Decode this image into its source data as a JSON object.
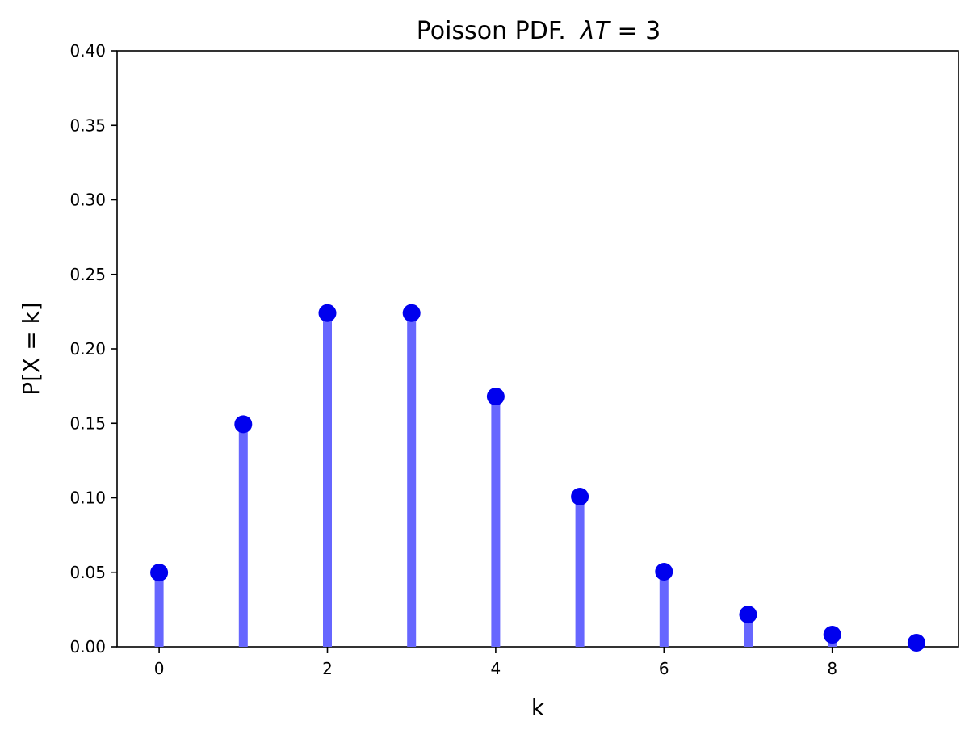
{
  "chart_data": {
    "type": "stem",
    "title_prefix": "Poisson PDF.",
    "title_lambda": "λT",
    "title_suffix": " = 3",
    "xlabel": "k",
    "ylabel": "P[X = k]",
    "x": [
      0,
      1,
      2,
      3,
      4,
      5,
      6,
      7,
      8,
      9
    ],
    "values": [
      0.0498,
      0.1494,
      0.224,
      0.224,
      0.168,
      0.1008,
      0.0504,
      0.0216,
      0.0081,
      0.0027
    ],
    "xlim": [
      -0.5,
      9.5
    ],
    "ylim": [
      0,
      0.4
    ],
    "xticks": [
      0,
      2,
      4,
      6,
      8
    ],
    "xtick_labels": [
      "0",
      "2",
      "4",
      "6",
      "8"
    ],
    "yticks": [
      0.0,
      0.05,
      0.1,
      0.15,
      0.2,
      0.25,
      0.3,
      0.35,
      0.4
    ],
    "ytick_labels": [
      "0.00",
      "0.05",
      "0.10",
      "0.15",
      "0.20",
      "0.25",
      "0.30",
      "0.35",
      "0.40"
    ],
    "stem_color": "#6666ff",
    "marker_color": "#0000ee",
    "grid": false
  }
}
